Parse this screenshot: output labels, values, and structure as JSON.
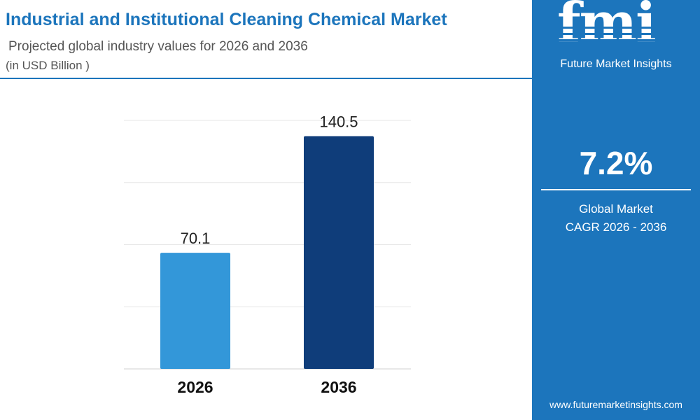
{
  "header": {
    "title": "Industrial and Institutional Cleaning Chemical Market",
    "subtitle": "Projected global industry values for 2026 and 2036",
    "unit": "(in USD Billion )"
  },
  "chart_data": {
    "type": "bar",
    "title": "Industrial and Institutional Cleaning Chemical Market",
    "subtitle": "Projected global industry values for 2026 and 2036",
    "ylabel": "",
    "xlabel": "",
    "unit": "(in USD Billion )",
    "categories": [
      "2026",
      "2036"
    ],
    "values": [
      70.1,
      140.5
    ],
    "value_labels": [
      "70.1",
      "140.5"
    ],
    "ylim": [
      0,
      150
    ],
    "grid": true,
    "colors": [
      "#3397d9",
      "#0f3d7a"
    ]
  },
  "sidebar": {
    "logo_text": "fmi",
    "brand": "Future Market Insights",
    "cagr_value": "7.2%",
    "cagr_label_line1": "Global Market",
    "cagr_label_line2": "CAGR 2026 - 2036",
    "website": "www.futuremarketinsights.com",
    "background": "#1c75bc"
  }
}
